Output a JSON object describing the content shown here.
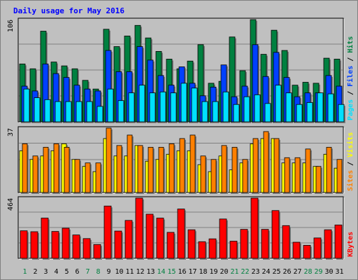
{
  "chart_data": {
    "type": "bar",
    "title": "Daily usage for May 2016",
    "categories": [
      "1",
      "2",
      "3",
      "4",
      "5",
      "6",
      "7",
      "8",
      "9",
      "10",
      "11",
      "12",
      "13",
      "14",
      "15",
      "16",
      "17",
      "18",
      "19",
      "20",
      "21",
      "22",
      "23",
      "24",
      "25",
      "26",
      "27",
      "28",
      "29",
      "30",
      "31"
    ],
    "weekend_days": [
      1,
      7,
      8,
      14,
      15,
      21,
      22,
      28,
      29
    ],
    "panels": [
      {
        "id": "hits_files_pages",
        "scale_label": "106",
        "ymax": 106,
        "legend": [
          "Pages",
          "Files",
          "Hits"
        ],
        "series": [
          {
            "name": "Hits",
            "color": "#008040",
            "values": [
              60,
              55,
              94,
              62,
              58,
              55,
              43,
              34,
              96,
              78,
              89,
              100,
              87,
              73,
              65,
              55,
              63,
              80,
              40,
              42,
              88,
              53,
              106,
              70,
              95,
              74,
              38,
              41,
              40,
              66,
              65
            ]
          },
          {
            "name": "Files",
            "color": "#0040ff",
            "values": [
              37,
              32,
              60,
              50,
              46,
              38,
              34,
              32,
              74,
              52,
              52,
              78,
              64,
              48,
              38,
              57,
              40,
              27,
              36,
              59,
              26,
              37,
              80,
              47,
              72,
              46,
              26,
              30,
              30,
              48,
              37
            ]
          },
          {
            "name": "Pages",
            "color": "#00e0ff",
            "values": [
              34,
              25,
              23,
              21,
              21,
              21,
              21,
              16,
              34,
              22,
              30,
              38,
              30,
              31,
              30,
              40,
              35,
              21,
              21,
              31,
              18,
              26,
              28,
              19,
              38,
              30,
              18,
              20,
              30,
              29,
              18
            ]
          }
        ]
      },
      {
        "id": "visits_sites",
        "scale_label": "37",
        "ymax": 37,
        "legend": [
          "Sites",
          "Visits"
        ],
        "series": [
          {
            "name": "Visits",
            "color": "#ffff00",
            "values": [
              24,
              19,
              21,
              24,
              28,
              19,
              15,
              12,
              31,
              21,
              21,
              27,
              18,
              19,
              22,
              24,
              24,
              16,
              12,
              21,
              13,
              17,
              28,
              31,
              31,
              17,
              17,
              17,
              15,
              22,
              14
            ]
          },
          {
            "name": "Sites",
            "color": "#ff8000",
            "values": [
              28,
              21,
              26,
              28,
              26,
              19,
              17,
              17,
              37,
              27,
              33,
              27,
              26,
              26,
              28,
              31,
              33,
              21,
              19,
              27,
              26,
              19,
              31,
              35,
              31,
              20,
              20,
              25,
              15,
              26,
              19
            ]
          }
        ]
      },
      {
        "id": "kbytes",
        "scale_label": "464",
        "ymax": 464,
        "legend": [
          "KBytes"
        ],
        "series": [
          {
            "name": "KBytes",
            "color": "#ff0000",
            "values": [
              212,
              205,
              310,
              207,
              232,
              180,
              152,
              106,
              403,
              210,
              292,
              464,
              340,
              310,
              200,
              380,
              220,
              128,
              150,
              303,
              132,
              223,
              464,
              223,
              368,
              252,
              124,
              100,
              157,
              220,
              257
            ]
          }
        ]
      }
    ],
    "legend_colors": {
      "Pages": "#00e0ff",
      "Files": "#0040ff",
      "Hits": "#008040",
      "Sites": "#ff8000",
      "Visits": "#ffff00",
      "KBytes": "#ff0000"
    },
    "grid": true
  }
}
